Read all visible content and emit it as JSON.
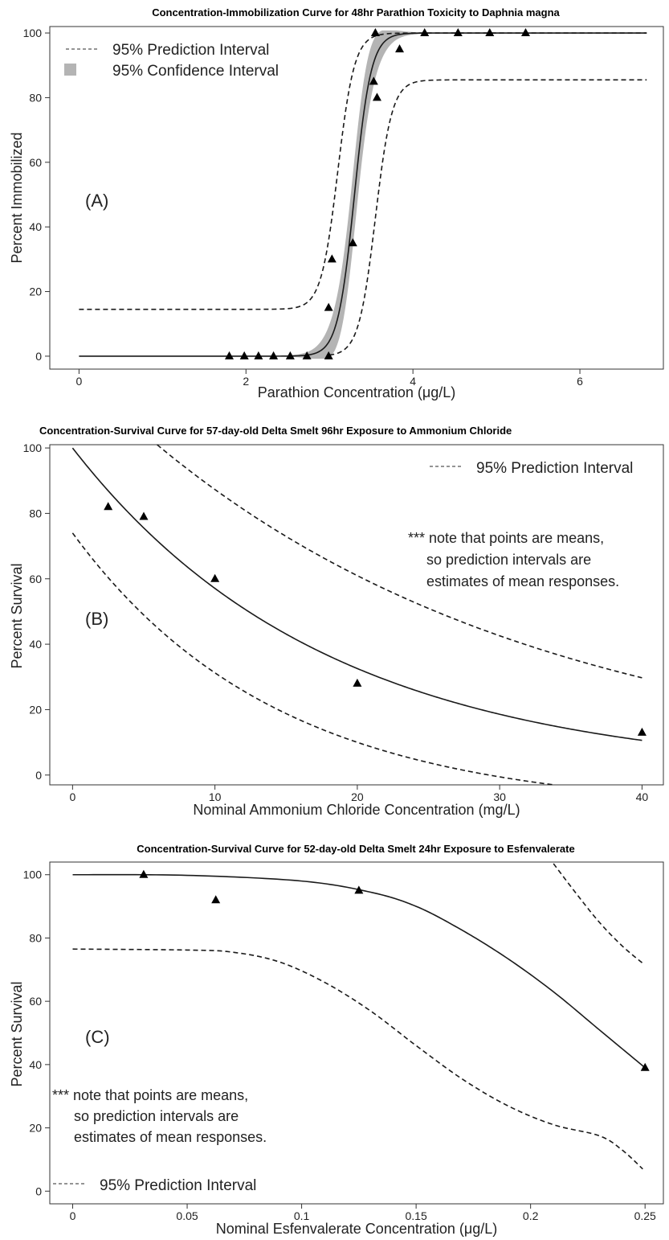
{
  "colors": {
    "axis": "#333333",
    "line": "#1a1a1a",
    "ci_band": "#b4b4b4",
    "point": "#000000"
  },
  "chart_data": [
    {
      "type": "scatter",
      "title": "Concentration-Immobilization Curve for 48hr Parathion Toxicity to Daphnia magna",
      "panel_label": "(A)",
      "xlabel": "Parathion Concentration (μg/L)",
      "ylabel": "Percent Immobilized",
      "xlim": [
        -0.35,
        7.0
      ],
      "ylim": [
        -4,
        102
      ],
      "xticks": [
        0,
        2,
        4,
        6
      ],
      "yticks": [
        0,
        20,
        40,
        60,
        80,
        100
      ],
      "legend": [
        {
          "kind": "dashed",
          "label": "95% Prediction Interval"
        },
        {
          "kind": "band",
          "label": "95% Confidence Interval"
        }
      ],
      "legend_position": "top-left",
      "points": [
        [
          1.8,
          0
        ],
        [
          1.98,
          0
        ],
        [
          2.15,
          0
        ],
        [
          2.33,
          0
        ],
        [
          2.53,
          0
        ],
        [
          2.73,
          0
        ],
        [
          2.99,
          0
        ],
        [
          2.99,
          15
        ],
        [
          3.03,
          30
        ],
        [
          3.28,
          35
        ],
        [
          3.53,
          85
        ],
        [
          3.57,
          80
        ],
        [
          3.55,
          100
        ],
        [
          3.84,
          95
        ],
        [
          4.14,
          100
        ],
        [
          4.54,
          100
        ],
        [
          4.92,
          100
        ],
        [
          5.35,
          100
        ]
      ],
      "fit": {
        "model": "logistic",
        "lower": 0,
        "upper": 100,
        "ec50": 3.3,
        "scale": 0.1,
        "x_range": [
          0,
          6.8
        ]
      },
      "ci_band": {
        "x_range": [
          2.3,
          4.4
        ]
      },
      "prediction_interval": [
        {
          "lower": 14.5,
          "upper": 100,
          "ec50": 3.1,
          "scale": 0.1,
          "x_range": [
            0,
            6.8
          ]
        },
        {
          "lower": 0,
          "upper": 85.5,
          "ec50": 3.55,
          "scale": 0.1,
          "x_range": [
            3.0,
            6.8
          ]
        }
      ]
    },
    {
      "type": "scatter",
      "title": "Concentration-Survival Curve for 57-day-old Delta Smelt 96hr Exposure to Ammonium Chloride",
      "panel_label": "(B)",
      "xlabel": "Nominal Ammonium Chloride Concentration (mg/L)",
      "ylabel": "Percent Survival",
      "xlim": [
        -1.6,
        41.5
      ],
      "ylim": [
        -3,
        101
      ],
      "xticks": [
        0,
        10,
        20,
        30,
        40
      ],
      "yticks": [
        0,
        20,
        40,
        60,
        80,
        100
      ],
      "legend": [
        {
          "kind": "dashed",
          "label": "95% Prediction Interval"
        }
      ],
      "legend_position": "top-right",
      "note": [
        "*** note that points are means,",
        "so prediction intervals are",
        "estimates of mean responses."
      ],
      "points": [
        [
          2.5,
          82
        ],
        [
          5,
          79
        ],
        [
          10,
          60
        ],
        [
          20,
          28
        ],
        [
          40,
          13
        ]
      ],
      "fit": {
        "model": "exponential",
        "a": 100,
        "k": 0.0561,
        "x_range": [
          0,
          40
        ]
      },
      "prediction_interval": [
        {
          "a": 125,
          "k": 0.0359,
          "x_range": [
            1.0,
            40
          ]
        },
        {
          "a": 85,
          "k": 0.0699,
          "x_range": [
            0,
            40
          ],
          "offset": -11
        }
      ]
    },
    {
      "type": "scatter",
      "title": "Concentration-Survival Curve for 52-day-old Delta Smelt 24hr Exposure to Esfenvalerate",
      "panel_label": "(C)",
      "xlabel": "Nominal Esfenvalerate Concentration (μg/L)",
      "ylabel": "Percent Survival",
      "xlim": [
        -0.01,
        0.258
      ],
      "ylim": [
        -4,
        104
      ],
      "xticks": [
        0,
        0.05,
        0.1,
        0.15,
        0.2,
        0.25
      ],
      "yticks": [
        0,
        20,
        40,
        60,
        80,
        100
      ],
      "legend": [
        {
          "kind": "dashed",
          "label": "95% Prediction Interval"
        }
      ],
      "legend_position": "bottom-left",
      "note": [
        "*** note that points are means,",
        "so prediction intervals are",
        "estimates of mean responses."
      ],
      "points": [
        [
          0.031,
          100
        ],
        [
          0.0625,
          92
        ],
        [
          0.125,
          95
        ],
        [
          0.25,
          39
        ]
      ],
      "fit": [
        [
          0,
          100
        ],
        [
          0.05,
          99.8
        ],
        [
          0.1,
          98
        ],
        [
          0.13,
          94.5
        ],
        [
          0.15,
          90
        ],
        [
          0.17,
          82.5
        ],
        [
          0.19,
          73.5
        ],
        [
          0.21,
          63
        ],
        [
          0.23,
          51
        ],
        [
          0.25,
          39
        ]
      ],
      "prediction_interval": [
        [
          [
            0.21,
            103.5
          ],
          [
            0.22,
            94
          ],
          [
            0.23,
            85
          ],
          [
            0.24,
            77.5
          ],
          [
            0.249,
            72
          ]
        ],
        [
          [
            0,
            76.5
          ],
          [
            0.05,
            76.2
          ],
          [
            0.07,
            75.5
          ],
          [
            0.09,
            72.5
          ],
          [
            0.11,
            66
          ],
          [
            0.13,
            57
          ],
          [
            0.15,
            46
          ],
          [
            0.17,
            35.5
          ],
          [
            0.19,
            27
          ],
          [
            0.21,
            21
          ],
          [
            0.23,
            17.5
          ],
          [
            0.24,
            13
          ],
          [
            0.249,
            7
          ]
        ]
      ]
    }
  ]
}
